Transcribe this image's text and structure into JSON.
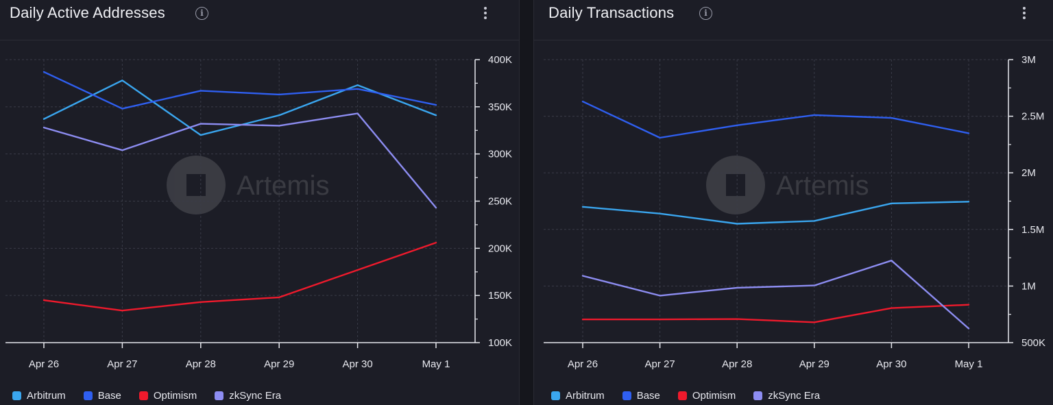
{
  "chart_data": [
    {
      "type": "line",
      "title": "Daily Active Addresses",
      "x": [
        "Apr 26",
        "Apr 27",
        "Apr 28",
        "Apr 29",
        "Apr 30",
        "May 1"
      ],
      "ylim": [
        100000,
        400000
      ],
      "yticks": [
        100000,
        150000,
        200000,
        250000,
        300000,
        350000,
        400000
      ],
      "ytick_labels": [
        "100K",
        "150K",
        "200K",
        "250K",
        "300K",
        "350K",
        "400K"
      ],
      "y_axis_side": "right",
      "grid": true,
      "legend_position": "bottom",
      "watermark": "Artemis",
      "series": [
        {
          "name": "Arbitrum",
          "color": "#3aa6ef",
          "values": [
            337000,
            378000,
            320000,
            341000,
            373000,
            341000
          ]
        },
        {
          "name": "Base",
          "color": "#2f5ff0",
          "values": [
            387000,
            348000,
            367000,
            363000,
            369000,
            352000
          ]
        },
        {
          "name": "Optimism",
          "color": "#ef1a2c",
          "values": [
            145000,
            134000,
            143000,
            148000,
            177000,
            206000
          ]
        },
        {
          "name": "zkSync Era",
          "color": "#8d8df2",
          "values": [
            328000,
            304000,
            332000,
            330000,
            343000,
            243000
          ]
        }
      ]
    },
    {
      "type": "line",
      "title": "Daily Transactions",
      "x": [
        "Apr 26",
        "Apr 27",
        "Apr 28",
        "Apr 29",
        "Apr 30",
        "May 1"
      ],
      "ylim": [
        500000,
        3000000
      ],
      "yticks": [
        500000,
        1000000,
        1500000,
        2000000,
        2500000,
        3000000
      ],
      "ytick_labels": [
        "500K",
        "1M",
        "1.5M",
        "2M",
        "2.5M",
        "3M"
      ],
      "y_axis_side": "right",
      "grid": true,
      "legend_position": "bottom",
      "watermark": "Artemis",
      "series": [
        {
          "name": "Arbitrum",
          "color": "#3aa6ef",
          "values": [
            1700000,
            1640000,
            1550000,
            1575000,
            1730000,
            1745000
          ]
        },
        {
          "name": "Base",
          "color": "#2f5ff0",
          "values": [
            2630000,
            2310000,
            2420000,
            2510000,
            2485000,
            2350000
          ]
        },
        {
          "name": "Optimism",
          "color": "#ef1a2c",
          "values": [
            705000,
            705000,
            708000,
            680000,
            805000,
            835000
          ]
        },
        {
          "name": "zkSync Era",
          "color": "#8d8df2",
          "values": [
            1090000,
            915000,
            985000,
            1005000,
            1225000,
            625000
          ]
        }
      ]
    }
  ]
}
